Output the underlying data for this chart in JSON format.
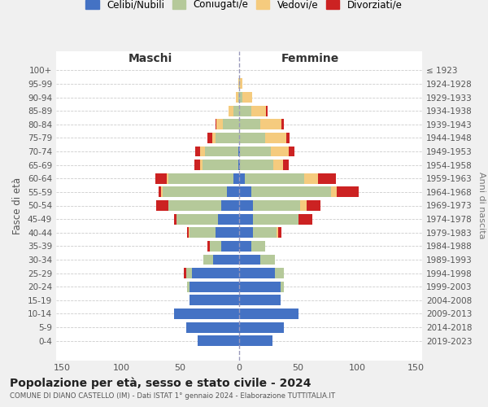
{
  "age_groups": [
    "0-4",
    "5-9",
    "10-14",
    "15-19",
    "20-24",
    "25-29",
    "30-34",
    "35-39",
    "40-44",
    "45-49",
    "50-54",
    "55-59",
    "60-64",
    "65-69",
    "70-74",
    "75-79",
    "80-84",
    "85-89",
    "90-94",
    "95-99",
    "100+"
  ],
  "birth_years": [
    "2019-2023",
    "2014-2018",
    "2009-2013",
    "2004-2008",
    "1999-2003",
    "1994-1998",
    "1989-1993",
    "1984-1988",
    "1979-1983",
    "1974-1978",
    "1969-1973",
    "1964-1968",
    "1959-1963",
    "1954-1958",
    "1949-1953",
    "1944-1948",
    "1939-1943",
    "1934-1938",
    "1929-1933",
    "1924-1928",
    "≤ 1923"
  ],
  "maschi": {
    "celibi": [
      35,
      45,
      55,
      42,
      42,
      40,
      22,
      15,
      20,
      18,
      15,
      10,
      5,
      1,
      1,
      0,
      0,
      0,
      0,
      0,
      0
    ],
    "coniugati": [
      0,
      0,
      0,
      0,
      2,
      5,
      8,
      10,
      22,
      35,
      45,
      55,
      55,
      30,
      28,
      20,
      14,
      5,
      1,
      0,
      0
    ],
    "vedovi": [
      0,
      0,
      0,
      0,
      0,
      0,
      0,
      0,
      1,
      0,
      0,
      1,
      1,
      2,
      4,
      3,
      5,
      4,
      2,
      1,
      0
    ],
    "divorziati": [
      0,
      0,
      0,
      0,
      0,
      2,
      0,
      2,
      1,
      2,
      10,
      2,
      10,
      5,
      4,
      4,
      1,
      0,
      0,
      0,
      0
    ]
  },
  "femmine": {
    "nubili": [
      28,
      38,
      50,
      35,
      35,
      30,
      18,
      10,
      12,
      12,
      12,
      10,
      5,
      1,
      1,
      0,
      0,
      0,
      0,
      0,
      0
    ],
    "coniugate": [
      0,
      0,
      0,
      0,
      3,
      8,
      12,
      12,
      20,
      38,
      40,
      68,
      50,
      28,
      26,
      22,
      18,
      10,
      3,
      1,
      0
    ],
    "vedove": [
      0,
      0,
      0,
      0,
      0,
      0,
      0,
      0,
      1,
      0,
      5,
      5,
      12,
      8,
      15,
      18,
      18,
      13,
      8,
      2,
      0
    ],
    "divorziate": [
      0,
      0,
      0,
      0,
      0,
      0,
      0,
      0,
      3,
      12,
      12,
      18,
      15,
      5,
      5,
      3,
      2,
      1,
      0,
      0,
      0
    ]
  },
  "colors": {
    "celibi": "#4472c4",
    "coniugati": "#b5c99a",
    "vedovi": "#f5cb7e",
    "divorziati": "#cc2222"
  },
  "xlim": 155,
  "title": "Popolazione per età, sesso e stato civile - 2024",
  "subtitle": "COMUNE DI DIANO CASTELLO (IM) - Dati ISTAT 1° gennaio 2024 - Elaborazione TUTTITALIA.IT",
  "ylabel_left": "Fasce di età",
  "ylabel_right": "Anni di nascita",
  "header_maschi": "Maschi",
  "header_femmine": "Femmine",
  "legend_labels": [
    "Celibi/Nubili",
    "Coniugati/e",
    "Vedovi/e",
    "Divorziati/e"
  ],
  "bg_color": "#f0f0f0",
  "plot_bg": "#ffffff"
}
